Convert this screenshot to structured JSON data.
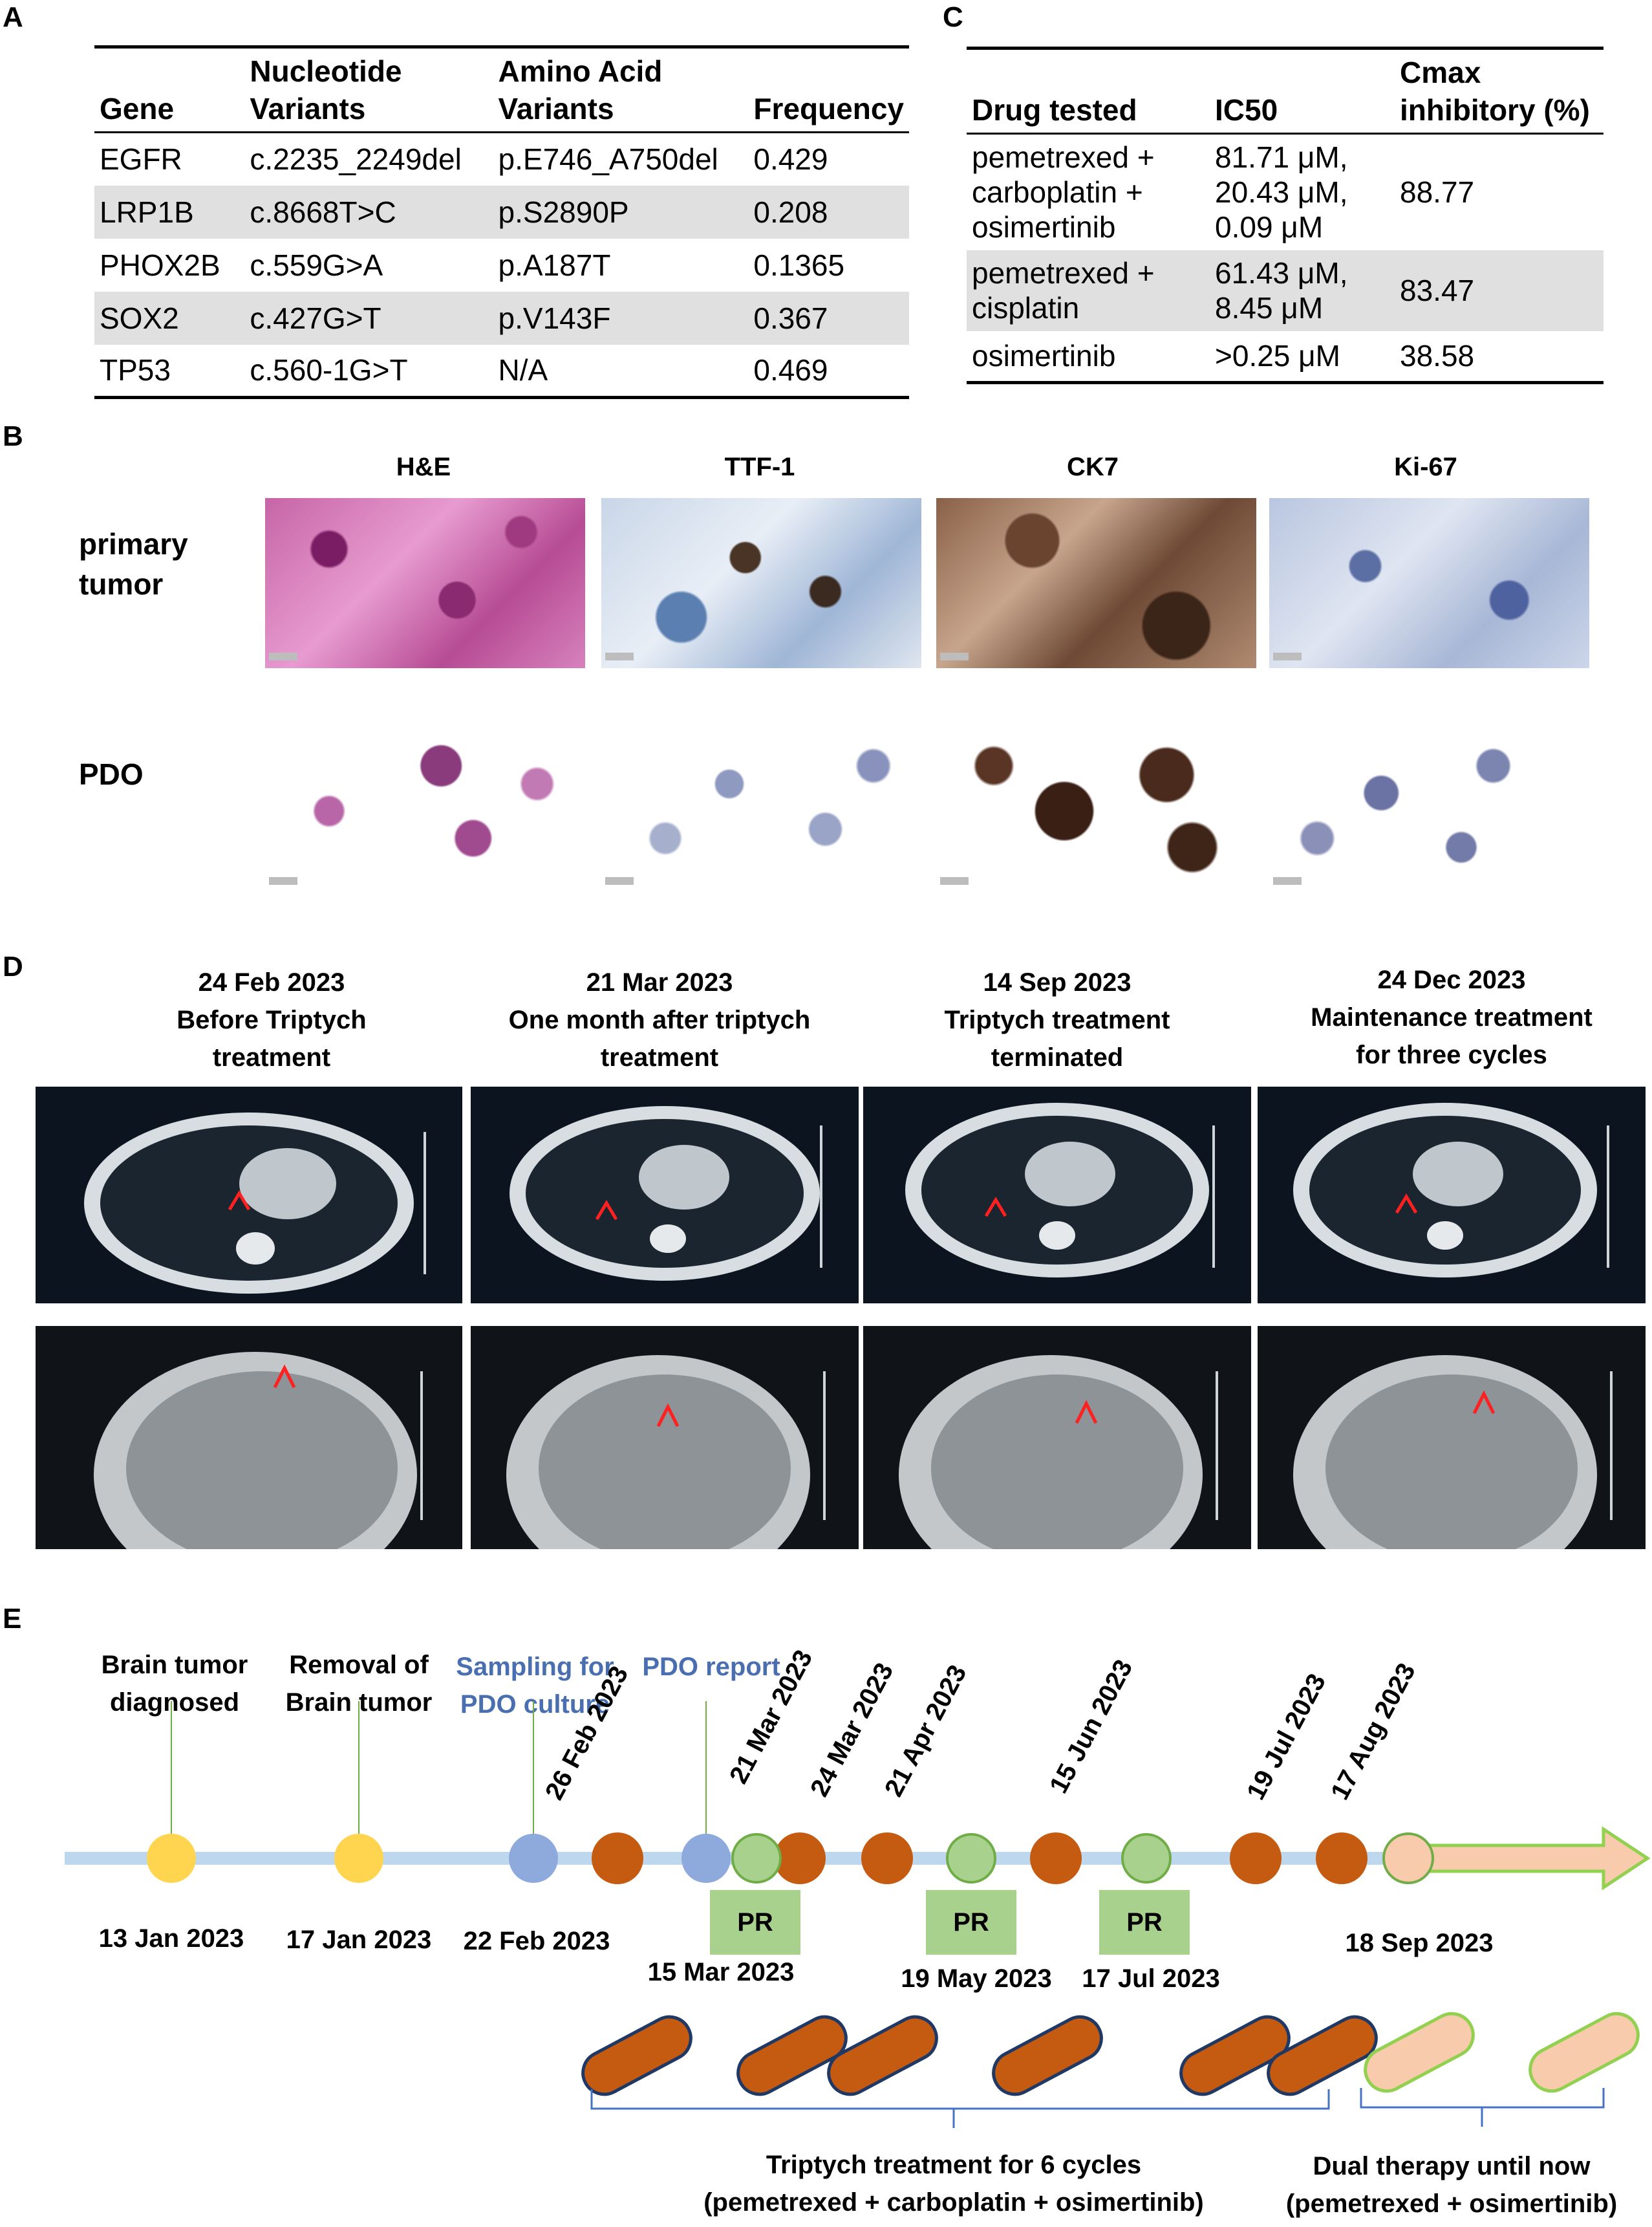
{
  "panels": {
    "a": "A",
    "b": "B",
    "c": "C",
    "d": "D",
    "e": "E"
  },
  "table_a": {
    "headers": [
      [
        "Gene"
      ],
      [
        "Nucleotide",
        "Variants"
      ],
      [
        "Amino Acid",
        "Variants"
      ],
      [
        "Frequency"
      ]
    ],
    "rows": [
      [
        "EGFR",
        "c.2235_2249del",
        "p.E746_A750del",
        "0.429"
      ],
      [
        "LRP1B",
        "c.8668T>C",
        "p.S2890P",
        "0.208"
      ],
      [
        "PHOX2B",
        "c.559G>A",
        "p.A187T",
        "0.1365"
      ],
      [
        "SOX2",
        "c.427G>T",
        "p.V143F",
        "0.367"
      ],
      [
        "TP53",
        "c.560-1G>T",
        "N/A",
        "0.469"
      ]
    ]
  },
  "table_c": {
    "headers": [
      [
        "Drug tested"
      ],
      [
        "IC50"
      ],
      [
        "Cmax",
        "inhibitory (%)"
      ]
    ],
    "rows": [
      {
        "drug": [
          "pemetrexed +",
          "carboplatin +",
          "osimertinib"
        ],
        "ic50": [
          "81.71 μM,",
          "20.43 μM,",
          "0.09 μM"
        ],
        "cmax": "88.77"
      },
      {
        "drug": [
          "pemetrexed +",
          "cisplatin"
        ],
        "ic50": [
          "61.43 μM,",
          "8.45 μM"
        ],
        "cmax": "83.47"
      },
      {
        "drug": [
          "osimertinib"
        ],
        "ic50": [
          ">0.25 μM"
        ],
        "cmax": "38.58"
      }
    ]
  },
  "panel_b": {
    "columns": [
      "H&E",
      "TTF-1",
      "CK7",
      "Ki-67"
    ],
    "rows": [
      "primary\ntumor",
      "PDO"
    ]
  },
  "panel_d": {
    "columns": [
      {
        "date": "24 Feb 2023",
        "line1": "Before Triptych",
        "line2": "treatment"
      },
      {
        "date": "21 Mar 2023",
        "line1": "One month after triptych",
        "line2": "treatment"
      },
      {
        "date": "14 Sep 2023",
        "line1": "Triptych treatment",
        "line2": "terminated"
      },
      {
        "date": "24 Dec 2023",
        "line1": "Maintenance treatment",
        "line2": "for three cycles"
      }
    ]
  },
  "panel_e": {
    "events_top": [
      {
        "line1": "Brain tumor",
        "line2": "diagnosed"
      },
      {
        "line1": "Removal of",
        "line2": "Brain tumor"
      },
      {
        "line1": "Sampling for",
        "line2": "PDO culture"
      },
      {
        "line1": "PDO report",
        "line2": ""
      }
    ],
    "dates_below": [
      "13 Jan 2023",
      "17 Jan 2023",
      "22 Feb 2023",
      "15 Mar 2023",
      "19 May 2023",
      "17 Jul 2023",
      "18 Sep 2023"
    ],
    "dates_rotated": [
      "26 Feb 2023",
      "21 Mar 2023",
      "24 Mar 2023",
      "21 Apr 2023",
      "15 Jun 2023",
      "19 Jul 2023",
      "17 Aug 2023"
    ],
    "pr_label": "PR",
    "bracket1": {
      "line1": "Triptych treatment for 6 cycles",
      "line2": "(pemetrexed + carboplatin + osimertinib)"
    },
    "bracket2": {
      "line1": "Dual therapy until now",
      "line2": "(pemetrexed + osimertinib)"
    },
    "colors": {
      "yellow": "#ffd54f",
      "blue": "#8ea9db",
      "orange": "#c55a11",
      "green": "#a9d18e",
      "peach": "#f8cbad",
      "line": "#bdd7ee"
    }
  }
}
